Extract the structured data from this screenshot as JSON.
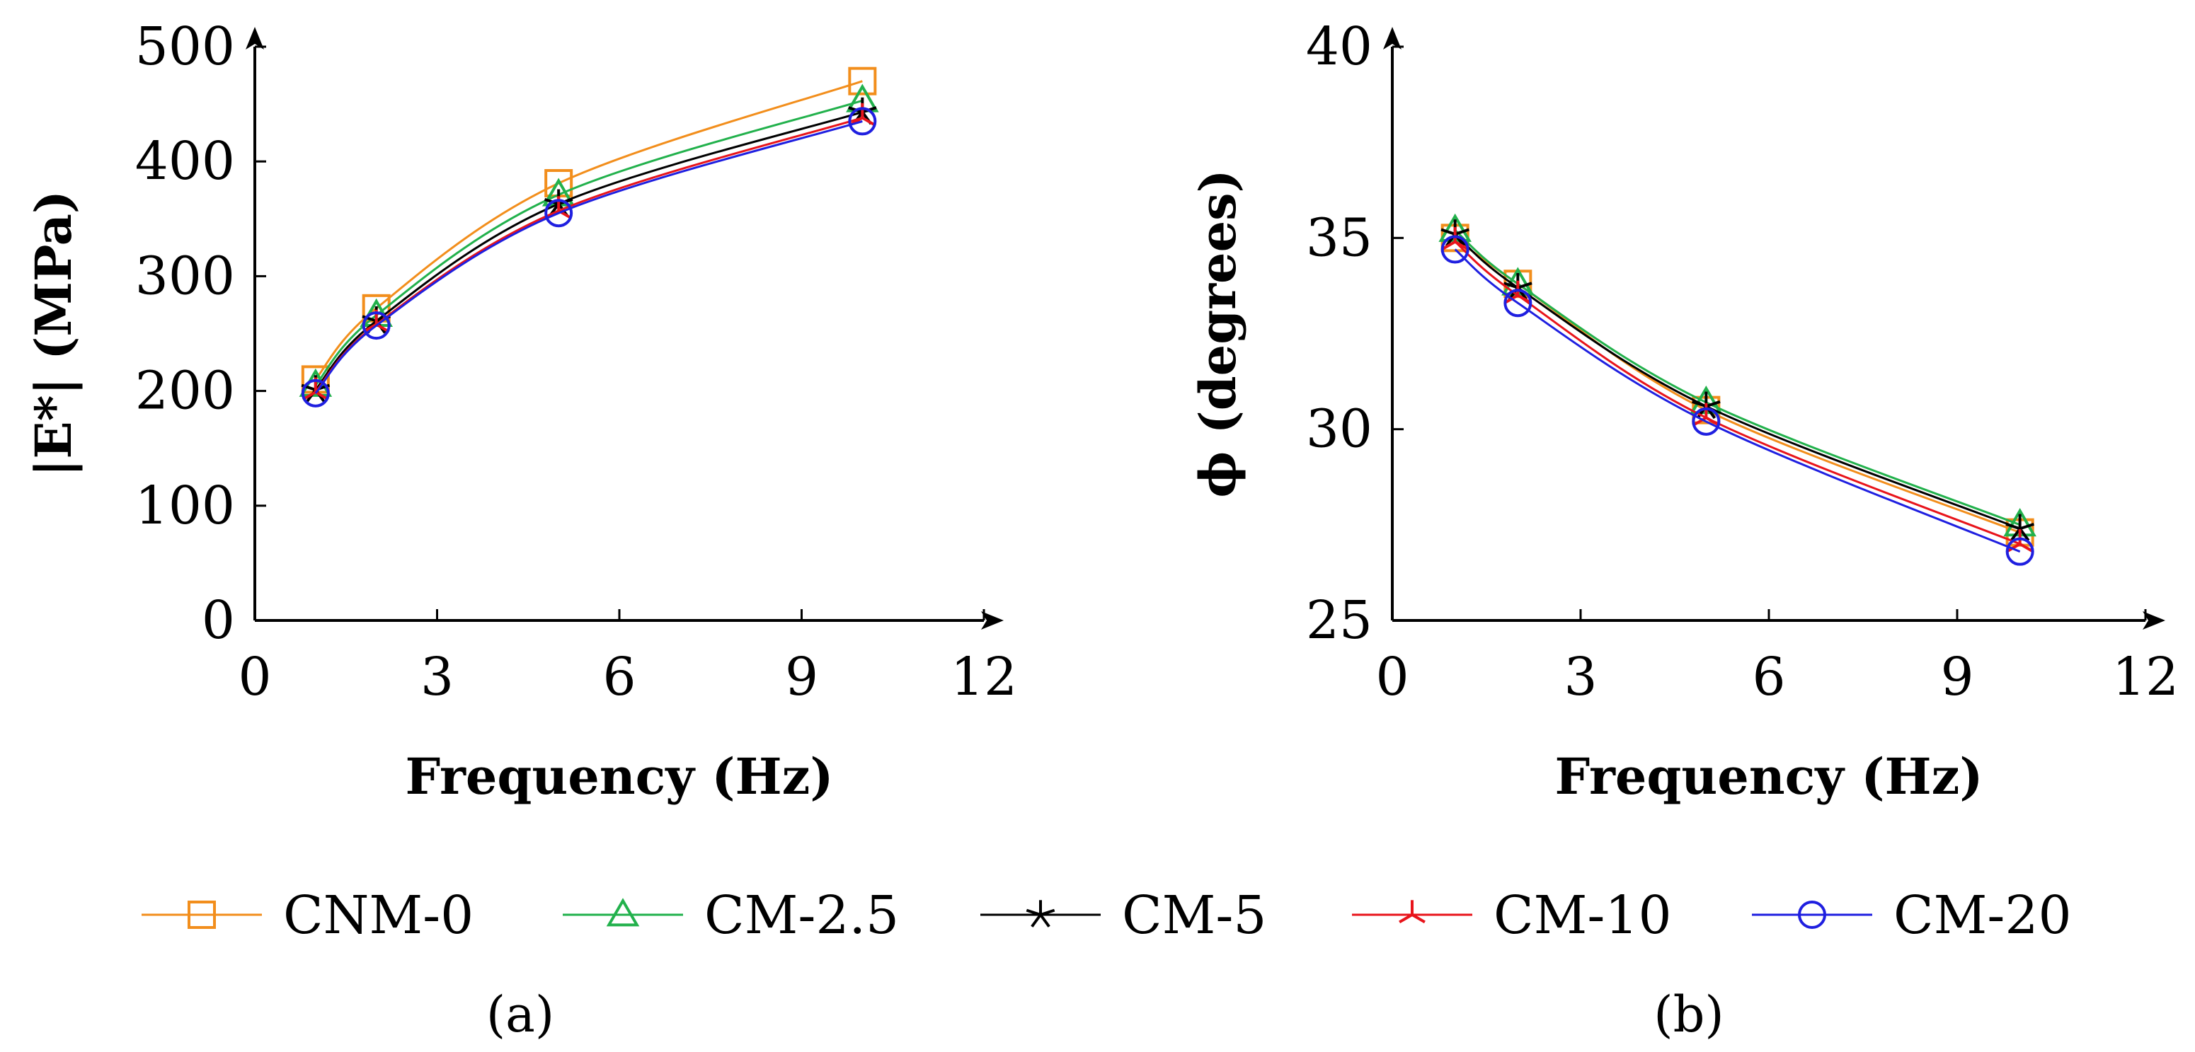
{
  "chart_data": [
    {
      "type": "line",
      "panel_label": "(a)",
      "xlabel": "Frequency (Hz)",
      "ylabel": "|E*| (MPa)",
      "xlim": [
        0,
        12
      ],
      "ylim": [
        0,
        500
      ],
      "xticks": [
        0,
        3,
        6,
        9,
        12
      ],
      "yticks": [
        0,
        100,
        200,
        300,
        400,
        500
      ],
      "x": [
        1,
        2,
        5,
        10
      ],
      "series": [
        {
          "name": "CNM-0",
          "values": [
            210,
            272,
            381,
            470
          ]
        },
        {
          "name": "CM-2.5",
          "values": [
            205,
            266,
            371,
            453
          ]
        },
        {
          "name": "CM-5",
          "values": [
            201,
            261,
            363,
            443
          ]
        },
        {
          "name": "CM-10",
          "values": [
            199,
            258,
            357,
            438
          ]
        },
        {
          "name": "CM-20",
          "values": [
            198,
            257,
            355,
            435
          ]
        }
      ]
    },
    {
      "type": "line",
      "panel_label": "(b)",
      "xlabel": "Frequency (Hz)",
      "ylabel": "ϕ (degrees)",
      "xlim": [
        0,
        12
      ],
      "ylim": [
        25,
        40
      ],
      "xticks": [
        0,
        3,
        6,
        9,
        12
      ],
      "yticks": [
        25,
        30,
        35,
        40
      ],
      "x": [
        1,
        2,
        5,
        10
      ],
      "series": [
        {
          "name": "CNM-0",
          "values": [
            35.0,
            33.8,
            30.5,
            27.3
          ]
        },
        {
          "name": "CM-2.5",
          "values": [
            35.2,
            33.8,
            30.7,
            27.5
          ]
        },
        {
          "name": "CM-5",
          "values": [
            35.1,
            33.7,
            30.6,
            27.4
          ]
        },
        {
          "name": "CM-10",
          "values": [
            34.9,
            33.5,
            30.3,
            27.0
          ]
        },
        {
          "name": "CM-20",
          "values": [
            34.7,
            33.3,
            30.2,
            26.8
          ]
        }
      ]
    }
  ],
  "legend": [
    {
      "name": "CNM-0",
      "color": "#f28e1c",
      "marker": "square"
    },
    {
      "name": "CM-2.5",
      "color": "#22b14c",
      "marker": "triangle"
    },
    {
      "name": "CM-5",
      "color": "#000000",
      "marker": "star"
    },
    {
      "name": "CM-10",
      "color": "#e8141b",
      "marker": "tri-star"
    },
    {
      "name": "CM-20",
      "color": "#1f1fe0",
      "marker": "circle"
    }
  ]
}
